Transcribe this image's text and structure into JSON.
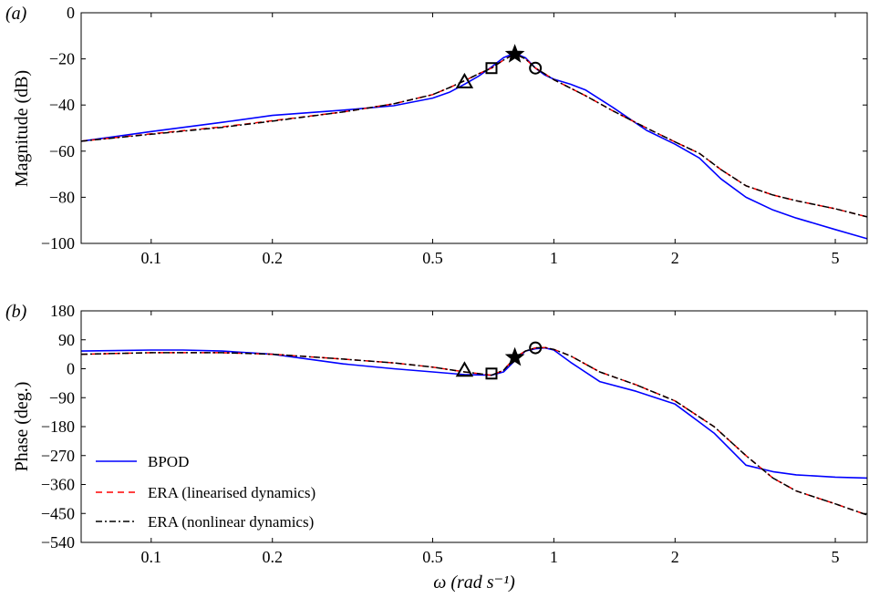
{
  "chart_data": [
    {
      "type": "line",
      "panel_label": "(a)",
      "xscale": "log",
      "xlim": [
        0.067,
        6.0
      ],
      "ylim": [
        -100,
        0
      ],
      "xticks": [
        0.1,
        0.2,
        0.5,
        1,
        2,
        5
      ],
      "xtick_labels": [
        "0.1",
        "0.2",
        "0.5",
        "1",
        "2",
        "5"
      ],
      "yticks": [
        0,
        -20,
        -40,
        -60,
        -80,
        -100
      ],
      "ytick_labels": [
        "0",
        "−20",
        "−40",
        "−60",
        "−80",
        "−100"
      ],
      "xlabel": "",
      "ylabel": "Magnitude (dB)",
      "grid": false,
      "series": [
        {
          "name": "BPOD",
          "color": "#0000ff",
          "style": "solid",
          "x": [
            0.067,
            0.1,
            0.15,
            0.2,
            0.3,
            0.4,
            0.5,
            0.55,
            0.6,
            0.65,
            0.7,
            0.75,
            0.8,
            0.85,
            0.9,
            0.95,
            1.0,
            1.1,
            1.2,
            1.4,
            1.7,
            2.0,
            2.3,
            2.6,
            3.0,
            3.5,
            4.0,
            5.0,
            6.0
          ],
          "y": [
            -55.7,
            -51.5,
            -47.5,
            -44.5,
            -42.2,
            -40.3,
            -37,
            -34.5,
            -31,
            -27.5,
            -23.5,
            -19.5,
            -17.5,
            -19.5,
            -24,
            -27,
            -28.8,
            -31,
            -33.5,
            -41,
            -51,
            -57,
            -63,
            -72,
            -80,
            -85.5,
            -89,
            -94,
            -98
          ]
        },
        {
          "name": "ERA (linearised dynamics)",
          "color": "#ff0000",
          "style": "dashed",
          "x": [
            0.067,
            0.1,
            0.15,
            0.2,
            0.3,
            0.4,
            0.5,
            0.55,
            0.6,
            0.65,
            0.7,
            0.75,
            0.8,
            0.85,
            0.9,
            0.95,
            1.0,
            1.2,
            1.4,
            1.7,
            2.0,
            2.3,
            2.6,
            3.0,
            3.5,
            4.0,
            5.0,
            6.0
          ],
          "y": [
            -55.7,
            -52.5,
            -49.5,
            -46.8,
            -43,
            -39.5,
            -35.5,
            -32.5,
            -29.5,
            -26.5,
            -24,
            -20.5,
            -17.8,
            -20,
            -24,
            -26.5,
            -29,
            -36,
            -42.5,
            -50,
            -56,
            -61,
            -68,
            -75,
            -79,
            -81.5,
            -85,
            -88.5
          ]
        },
        {
          "name": "ERA (nonlinear dynamics)",
          "color": "#000000",
          "style": "dashdot",
          "x": [
            0.067,
            0.1,
            0.15,
            0.2,
            0.3,
            0.4,
            0.5,
            0.55,
            0.6,
            0.65,
            0.7,
            0.75,
            0.8,
            0.85,
            0.9,
            0.95,
            1.0,
            1.2,
            1.4,
            1.7,
            2.0,
            2.3,
            2.6,
            3.0,
            3.5,
            4.0,
            5.0,
            6.0
          ],
          "y": [
            -55.7,
            -52.7,
            -49.7,
            -47,
            -43,
            -39.5,
            -35.5,
            -32.5,
            -29.5,
            -26.5,
            -24,
            -20.5,
            -17.8,
            -20,
            -24,
            -26.5,
            -29,
            -36,
            -42.5,
            -50,
            -56,
            -61,
            -68,
            -75,
            -79,
            -81.5,
            -85,
            -88.5
          ]
        }
      ],
      "markers": [
        {
          "shape": "triangle",
          "x": 0.6,
          "y": -30
        },
        {
          "shape": "square",
          "x": 0.7,
          "y": -24
        },
        {
          "shape": "star",
          "x": 0.8,
          "y": -18
        },
        {
          "shape": "circle",
          "x": 0.9,
          "y": -24
        }
      ]
    },
    {
      "type": "line",
      "panel_label": "(b)",
      "xscale": "log",
      "xlim": [
        0.067,
        6.0
      ],
      "ylim": [
        -540,
        180
      ],
      "xticks": [
        0.1,
        0.2,
        0.5,
        1,
        2,
        5
      ],
      "xtick_labels": [
        "0.1",
        "0.2",
        "0.5",
        "1",
        "2",
        "5"
      ],
      "yticks": [
        180,
        90,
        0,
        -90,
        -180,
        -270,
        -360,
        -450,
        -540
      ],
      "ytick_labels": [
        "180",
        "90",
        "0",
        "−90",
        "−180",
        "−270",
        "−360",
        "−450",
        "−540"
      ],
      "xlabel": "ω (rad s⁻¹)",
      "ylabel": "Phase (deg.)",
      "grid": false,
      "legend_position": "lower-left",
      "series": [
        {
          "name": "BPOD",
          "color": "#0000ff",
          "style": "solid",
          "x": [
            0.067,
            0.1,
            0.12,
            0.15,
            0.2,
            0.3,
            0.4,
            0.5,
            0.6,
            0.7,
            0.75,
            0.8,
            0.85,
            0.9,
            0.95,
            1.0,
            1.1,
            1.3,
            1.6,
            2.0,
            2.5,
            3.0,
            3.5,
            4.0,
            5.0,
            6.0
          ],
          "y": [
            55,
            58,
            58,
            55,
            45,
            15,
            0,
            -10,
            -18,
            -20,
            -10,
            25,
            55,
            62,
            65,
            58,
            20,
            -40,
            -70,
            -110,
            -200,
            -300,
            -320,
            -330,
            -337,
            -340
          ]
        },
        {
          "name": "ERA (linearised dynamics)",
          "color": "#ff0000",
          "style": "dashed",
          "x": [
            0.067,
            0.1,
            0.15,
            0.2,
            0.3,
            0.4,
            0.5,
            0.6,
            0.7,
            0.75,
            0.8,
            0.85,
            0.9,
            0.95,
            1.0,
            1.1,
            1.3,
            1.6,
            2.0,
            2.5,
            3.0,
            3.5,
            4.0,
            5.0,
            6.0
          ],
          "y": [
            45,
            50,
            50,
            45,
            30,
            18,
            5,
            -10,
            -20,
            -5,
            35,
            55,
            65,
            66,
            60,
            40,
            -10,
            -50,
            -100,
            -180,
            -270,
            -340,
            -380,
            -420,
            -455
          ]
        },
        {
          "name": "ERA (nonlinear dynamics)",
          "color": "#000000",
          "style": "dashdot",
          "x": [
            0.067,
            0.1,
            0.15,
            0.2,
            0.3,
            0.4,
            0.5,
            0.6,
            0.7,
            0.75,
            0.8,
            0.85,
            0.9,
            0.95,
            1.0,
            1.1,
            1.3,
            1.6,
            2.0,
            2.5,
            3.0,
            3.5,
            4.0,
            5.0,
            6.0
          ],
          "y": [
            45,
            50,
            50,
            45,
            30,
            18,
            5,
            -10,
            -20,
            -5,
            35,
            55,
            65,
            66,
            60,
            40,
            -10,
            -50,
            -100,
            -180,
            -270,
            -340,
            -380,
            -420,
            -455
          ]
        }
      ],
      "markers": [
        {
          "shape": "triangle",
          "x": 0.6,
          "y": -5
        },
        {
          "shape": "square",
          "x": 0.7,
          "y": -15
        },
        {
          "shape": "star",
          "x": 0.8,
          "y": 35
        },
        {
          "shape": "circle",
          "x": 0.9,
          "y": 65
        }
      ]
    }
  ]
}
